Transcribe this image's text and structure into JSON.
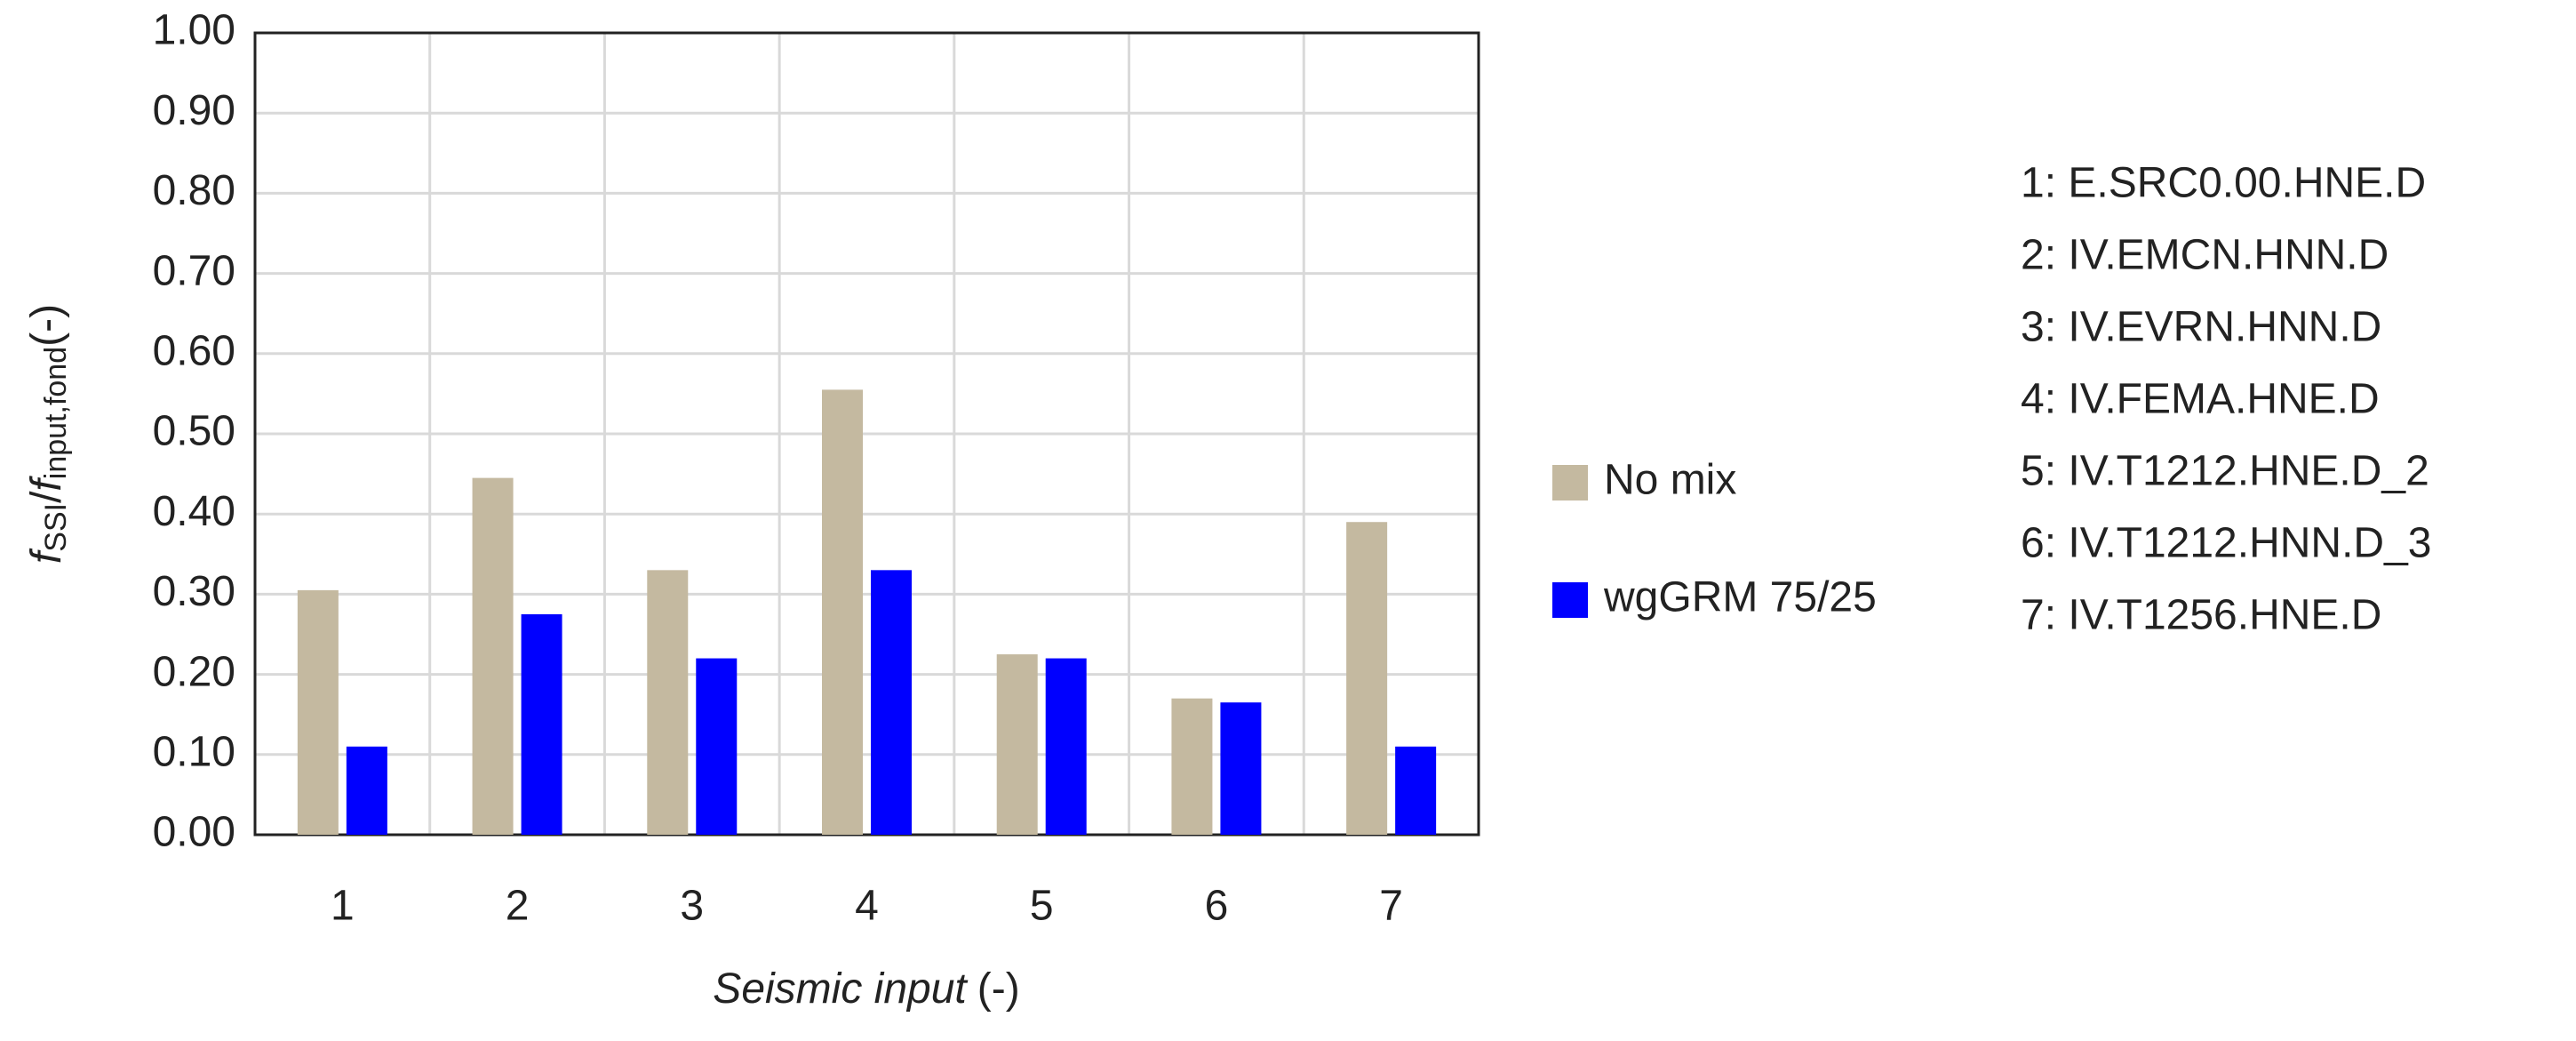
{
  "chart_data": {
    "type": "bar",
    "ylabel_parts": [
      "f",
      "SSI",
      "/",
      "f",
      "input,fond",
      "(-)"
    ],
    "xlabel_parts": [
      "Seismic input",
      "(-)"
    ],
    "categories": [
      "1",
      "2",
      "3",
      "4",
      "5",
      "6",
      "7"
    ],
    "series": [
      {
        "name": "No mix",
        "color": "#c4b9a0",
        "values": [
          0.305,
          0.445,
          0.33,
          0.555,
          0.225,
          0.17,
          0.39
        ]
      },
      {
        "name": "wgGRM 75/25",
        "color": "#0000ff",
        "values": [
          0.11,
          0.275,
          0.22,
          0.33,
          0.22,
          0.165,
          0.11
        ]
      }
    ],
    "ylim": [
      0,
      1
    ],
    "yticks": [
      {
        "value": 0,
        "label": "0.00"
      },
      {
        "value": 0.1,
        "label": "0.10"
      },
      {
        "value": 0.2,
        "label": "0.20"
      },
      {
        "value": 0.3,
        "label": "0.30"
      },
      {
        "value": 0.4,
        "label": "0.40"
      },
      {
        "value": 0.5,
        "label": "0.50"
      },
      {
        "value": 0.6,
        "label": "0.60"
      },
      {
        "value": 0.7,
        "label": "0.70"
      },
      {
        "value": 0.8,
        "label": "0.80"
      },
      {
        "value": 0.9,
        "label": "0.90"
      },
      {
        "value": 1,
        "label": "1.00"
      }
    ],
    "grid": true,
    "legend": "right",
    "annotations": [
      "1: E.SRC0.00.HNE.D",
      "2: IV.EMCN.HNN.D",
      "3: IV.EVRN.HNN.D",
      "4: IV.FEMA.HNE.D",
      "5: IV.T1212.HNE.D_2",
      "6: IV.T1212.HNN.D_3",
      "7: IV.T1256.HNE.D"
    ]
  }
}
